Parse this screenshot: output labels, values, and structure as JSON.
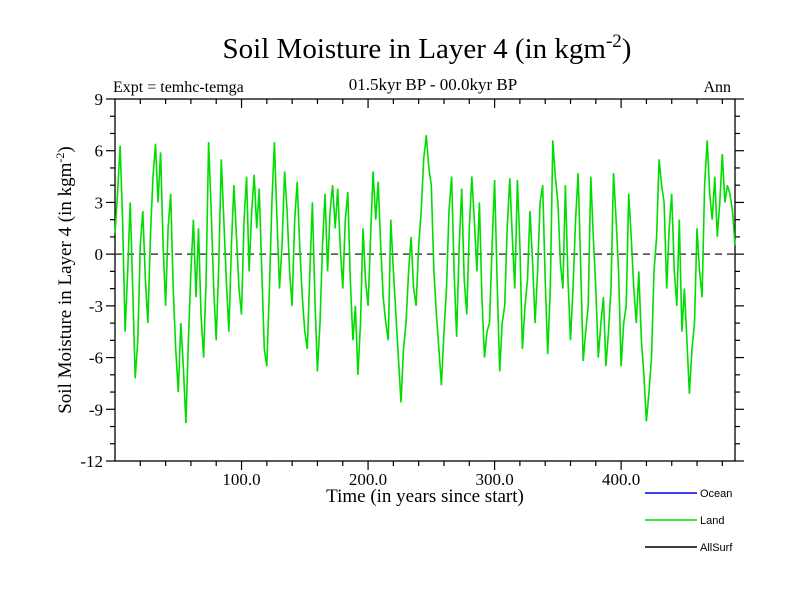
{
  "header": {
    "title": {
      "prefix": "Soil Moisture in Layer 4 (in kgm",
      "sup": "-2",
      "suffix": ")"
    },
    "subtitle": "01.5kyr BP - 00.0kyr BP",
    "experiment_label": "Expt = temhc-temga",
    "period_label": "Ann"
  },
  "chart_data": {
    "type": "line",
    "title": "Soil Moisture in Layer 4 (in kgm^-2)",
    "subtitle": "01.5kyr BP - 00.0kyr BP",
    "xlabel": "Time (in years since start)",
    "ylabel": {
      "prefix": "Soil Moisture in Layer 4 (in kgm",
      "sup": "-2",
      "suffix": ")"
    },
    "xlim": [
      0,
      490
    ],
    "ylim": [
      -12,
      9
    ],
    "grid": false,
    "frame_color": "#000000",
    "zero_line": {
      "y": 0,
      "style": "dashed",
      "color": "#404040"
    },
    "x_major_ticks": [
      {
        "value": 100,
        "label": "100.0"
      },
      {
        "value": 200,
        "label": "200.0"
      },
      {
        "value": 300,
        "label": "300.0"
      },
      {
        "value": 400,
        "label": "400.0"
      }
    ],
    "x_minor_step": 20,
    "y_major_ticks": [
      {
        "value": 9,
        "label": "9"
      },
      {
        "value": 6,
        "label": "6"
      },
      {
        "value": 3,
        "label": "3"
      },
      {
        "value": 0,
        "label": "0"
      },
      {
        "value": -3,
        "label": "-3"
      },
      {
        "value": -6,
        "label": "-6"
      },
      {
        "value": -9,
        "label": "-9"
      },
      {
        "value": -12,
        "label": "-12"
      }
    ],
    "y_minor_step": 1,
    "x_start": 0,
    "x_step": 2,
    "legend_position": "bottom-right",
    "series": [
      {
        "name": "Ocean",
        "color": "#0000ee",
        "values": []
      },
      {
        "name": "Land",
        "color": "#00dd00",
        "values": [
          1.2,
          3.5,
          6.3,
          2.0,
          -4.5,
          -1.0,
          3.0,
          -2.0,
          -7.2,
          -5.0,
          0.5,
          2.5,
          -1.5,
          -4.0,
          1.0,
          4.5,
          6.4,
          3.0,
          5.9,
          0.5,
          -3.0,
          1.5,
          3.5,
          -2.0,
          -5.5,
          -8.0,
          -4.0,
          -6.5,
          -9.8,
          -5.0,
          -1.0,
          2.0,
          -2.5,
          1.5,
          -3.5,
          -6.0,
          -1.5,
          6.5,
          2.5,
          -2.0,
          -5.0,
          -0.5,
          5.5,
          2.0,
          -1.5,
          -4.5,
          0.5,
          4.0,
          1.0,
          -2.0,
          -3.5,
          2.0,
          4.5,
          -1.0,
          2.5,
          4.6,
          1.5,
          3.8,
          -1.0,
          -5.5,
          -6.5,
          -2.0,
          3.0,
          6.5,
          2.0,
          -2.0,
          0.5,
          4.8,
          2.5,
          -1.0,
          -3.0,
          2.0,
          4.2,
          0.5,
          -2.5,
          -4.5,
          -5.5,
          -1.0,
          3.0,
          -2.5,
          -6.8,
          -4.0,
          0.5,
          3.5,
          -1.0,
          2.5,
          4.0,
          1.5,
          3.8,
          0.5,
          -2.0,
          2.0,
          3.6,
          -1.5,
          -5.0,
          -3.0,
          -7.0,
          -4.0,
          1.5,
          -1.5,
          -3.0,
          1.0,
          4.8,
          2.0,
          4.2,
          0.5,
          -2.5,
          -4.0,
          -5.0,
          2.0,
          -1.0,
          -3.5,
          -6.0,
          -8.6,
          -5.5,
          -4.0,
          -1.0,
          1.0,
          -2.0,
          -3.0,
          0.5,
          2.5,
          5.5,
          6.9,
          5.0,
          4.0,
          -1.0,
          -3.5,
          -5.5,
          -7.6,
          -4.5,
          -2.0,
          2.5,
          4.5,
          -1.0,
          -4.8,
          0.5,
          3.8,
          -1.5,
          -3.5,
          1.5,
          4.5,
          2.0,
          -1.0,
          3.0,
          -2.5,
          -6.0,
          -4.5,
          -4.0,
          0.5,
          4.3,
          -1.5,
          -6.8,
          -4.0,
          -3.0,
          1.5,
          4.4,
          1.0,
          -2.0,
          4.3,
          0.5,
          -5.5,
          -3.0,
          -1.5,
          2.5,
          -0.5,
          -4.0,
          -1.0,
          3.0,
          4.0,
          -1.5,
          -5.8,
          -2.0,
          6.6,
          4.5,
          3.0,
          -0.5,
          -2.0,
          4.0,
          -1.5,
          -5.0,
          -2.0,
          2.0,
          4.7,
          -0.5,
          -6.2,
          -4.5,
          -3.0,
          4.5,
          1.0,
          -2.0,
          -6.0,
          -4.0,
          -2.5,
          -6.5,
          -4.5,
          -2.0,
          4.7,
          2.0,
          -1.0,
          -6.5,
          -4.0,
          -3.0,
          3.5,
          1.0,
          -2.0,
          -4.0,
          -1.0,
          -5.0,
          -7.0,
          -9.7,
          -8.0,
          -6.0,
          -1.0,
          1.0,
          5.5,
          4.0,
          3.0,
          -2.0,
          1.5,
          3.5,
          -1.0,
          -3.0,
          2.0,
          -4.5,
          -2.0,
          -5.0,
          -8.1,
          -5.5,
          -4.0,
          1.5,
          -1.0,
          -2.5,
          4.0,
          6.6,
          3.5,
          2.0,
          4.5,
          1.0,
          3.0,
          5.8,
          3.0,
          4.0,
          3.5,
          2.5,
          0.5
        ]
      },
      {
        "name": "AllSurf",
        "color": "#000000",
        "values": []
      }
    ]
  }
}
